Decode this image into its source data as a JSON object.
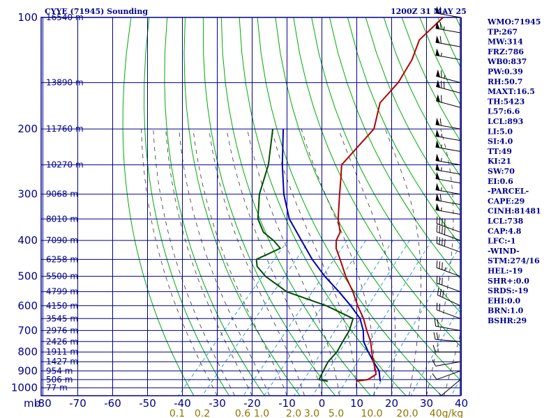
{
  "header": {
    "station": "CYYE (71945) Sounding",
    "time": "1200Z 31 MAY 25"
  },
  "indices": [
    "WMO:71945",
    "TP:267",
    "MW:314",
    "FRZ:786",
    "WB0:837",
    "PW:0.39",
    "RH:50.7",
    "MAXT:16.5",
    "TH:5423",
    "L57:6.6",
    "LCL:893",
    "LI:5.0",
    "SI:4.0",
    "TT:49",
    "KI:21",
    "SW:70",
    "EI:0.6",
    "-PARCEL-",
    "CAPE:29",
    "CINH:81481",
    "LCL:738",
    "CAP:4.8",
    "LFC:-1",
    "-WIND-",
    "STM:274/16",
    "HEL:-19",
    "SHR+:0.0",
    "SRDS:-19",
    "EHI:0.0",
    "BRN:1.0",
    "BSHR:29"
  ],
  "colors": {
    "axes": "#00008b",
    "dry_adiabat": "#00aa00",
    "moist_adiabat": "#333333",
    "mixing_ratio": "#3399cc",
    "temperature": "#b30000",
    "dewpoint": "#004d00",
    "parcel": "#0000aa",
    "mix_label": "#8b7500"
  },
  "chart_data": {
    "type": "skew-t",
    "title": "CYYE (71945) Sounding",
    "xlabel": "",
    "ylabel": "mb",
    "pressure_ticks": [
      100,
      200,
      300,
      400,
      500,
      600,
      700,
      800,
      900,
      1000
    ],
    "pressure_tick_labels": [
      "100",
      "200",
      "300",
      "400",
      "500",
      "600",
      "700",
      "800",
      "900",
      "1000"
    ],
    "temperature_ticks": [
      -80,
      -70,
      -60,
      -50,
      -40,
      -30,
      -20,
      -10,
      0,
      10,
      20,
      30,
      40
    ],
    "temperature_tick_labels": [
      "-80",
      "-70",
      "-60",
      "-50",
      "-40",
      "-30",
      "-20",
      "-10",
      "0",
      "10",
      "20",
      "30",
      "40"
    ],
    "mixing_ratio_labels": [
      "0.1",
      "0.2",
      "0.6",
      "1.0",
      "2.0",
      "3.0",
      "5.0",
      "10.0",
      "20.0",
      "40g/kg"
    ],
    "height_levels": [
      {
        "label": "16540 m",
        "p": 100
      },
      {
        "label": "13890 m",
        "p": 150
      },
      {
        "label": "11760 m",
        "p": 200
      },
      {
        "label": "10270 m",
        "p": 250
      },
      {
        "label": "9068 m",
        "p": 300
      },
      {
        "label": "8010 m",
        "p": 350
      },
      {
        "label": "7090 m",
        "p": 400
      },
      {
        "label": "6258 m",
        "p": 450
      },
      {
        "label": "5500 m",
        "p": 500
      },
      {
        "label": "4799 m",
        "p": 550
      },
      {
        "label": "4150 m",
        "p": 600
      },
      {
        "label": "3545 m",
        "p": 650
      },
      {
        "label": "2976 m",
        "p": 700
      },
      {
        "label": "2426 m",
        "p": 750
      },
      {
        "label": "1911 m",
        "p": 800
      },
      {
        "label": "1427 m",
        "p": 850
      },
      {
        "label": "954 m",
        "p": 900
      },
      {
        "label": "506 m",
        "p": 950
      },
      {
        "label": "77 m",
        "p": 1000
      }
    ],
    "temperature_profile": [
      [
        100,
        -63
      ],
      [
        115,
        -64
      ],
      [
        130,
        -61
      ],
      [
        150,
        -59
      ],
      [
        170,
        -59
      ],
      [
        200,
        -54
      ],
      [
        230,
        -54
      ],
      [
        250,
        -54
      ],
      [
        270,
        -51
      ],
      [
        300,
        -47
      ],
      [
        350,
        -41
      ],
      [
        380,
        -37
      ],
      [
        400,
        -36
      ],
      [
        420,
        -34
      ],
      [
        450,
        -30
      ],
      [
        500,
        -24
      ],
      [
        550,
        -18
      ],
      [
        600,
        -13
      ],
      [
        650,
        -8
      ],
      [
        700,
        -4
      ],
      [
        750,
        0
      ],
      [
        800,
        3
      ],
      [
        850,
        6
      ],
      [
        900,
        9
      ],
      [
        920,
        10
      ],
      [
        950,
        9
      ],
      [
        960,
        6
      ]
    ],
    "dewpoint_profile": [
      [
        200,
        -83
      ],
      [
        250,
        -75
      ],
      [
        300,
        -70
      ],
      [
        350,
        -64
      ],
      [
        380,
        -59
      ],
      [
        400,
        -54
      ],
      [
        420,
        -50
      ],
      [
        450,
        -54
      ],
      [
        470,
        -52
      ],
      [
        500,
        -47
      ],
      [
        550,
        -37
      ],
      [
        600,
        -22
      ],
      [
        650,
        -11
      ],
      [
        700,
        -9
      ],
      [
        750,
        -8
      ],
      [
        800,
        -7
      ],
      [
        850,
        -7
      ],
      [
        900,
        -6
      ],
      [
        950,
        -5
      ],
      [
        960,
        -2
      ]
    ],
    "parcel_profile": [
      [
        200,
        -80
      ],
      [
        250,
        -71
      ],
      [
        300,
        -63
      ],
      [
        350,
        -55
      ],
      [
        400,
        -46
      ],
      [
        450,
        -38
      ],
      [
        500,
        -30
      ],
      [
        550,
        -22
      ],
      [
        600,
        -15
      ],
      [
        650,
        -9
      ],
      [
        700,
        -5
      ],
      [
        750,
        -2
      ],
      [
        800,
        2
      ],
      [
        850,
        6
      ],
      [
        900,
        10
      ],
      [
        960,
        13
      ]
    ],
    "wind_barbs": [
      {
        "p": 100,
        "dir": 280,
        "spd": 65
      },
      {
        "p": 110,
        "dir": 280,
        "spd": 65
      },
      {
        "p": 120,
        "dir": 280,
        "spd": 60
      },
      {
        "p": 130,
        "dir": 280,
        "spd": 55
      },
      {
        "p": 150,
        "dir": 285,
        "spd": 65
      },
      {
        "p": 160,
        "dir": 285,
        "spd": 70
      },
      {
        "p": 175,
        "dir": 285,
        "spd": 60
      },
      {
        "p": 200,
        "dir": 280,
        "spd": 60
      },
      {
        "p": 215,
        "dir": 280,
        "spd": 55
      },
      {
        "p": 230,
        "dir": 280,
        "spd": 55
      },
      {
        "p": 250,
        "dir": 280,
        "spd": 55
      },
      {
        "p": 265,
        "dir": 280,
        "spd": 55
      },
      {
        "p": 280,
        "dir": 280,
        "spd": 50
      },
      {
        "p": 300,
        "dir": 280,
        "spd": 55
      },
      {
        "p": 320,
        "dir": 280,
        "spd": 60
      },
      {
        "p": 340,
        "dir": 280,
        "spd": 55
      },
      {
        "p": 380,
        "dir": 290,
        "spd": 40
      },
      {
        "p": 400,
        "dir": 290,
        "spd": 40
      },
      {
        "p": 430,
        "dir": 290,
        "spd": 40
      },
      {
        "p": 500,
        "dir": 290,
        "spd": 35
      },
      {
        "p": 550,
        "dir": 290,
        "spd": 30
      },
      {
        "p": 600,
        "dir": 295,
        "spd": 30
      },
      {
        "p": 650,
        "dir": 290,
        "spd": 20
      },
      {
        "p": 700,
        "dir": 280,
        "spd": 20
      },
      {
        "p": 750,
        "dir": 275,
        "spd": 20
      },
      {
        "p": 800,
        "dir": 270,
        "spd": 15
      },
      {
        "p": 850,
        "dir": 260,
        "spd": 10
      },
      {
        "p": 900,
        "dir": 250,
        "spd": 10
      },
      {
        "p": 950,
        "dir": 230,
        "spd": 5
      }
    ],
    "grid": true
  }
}
